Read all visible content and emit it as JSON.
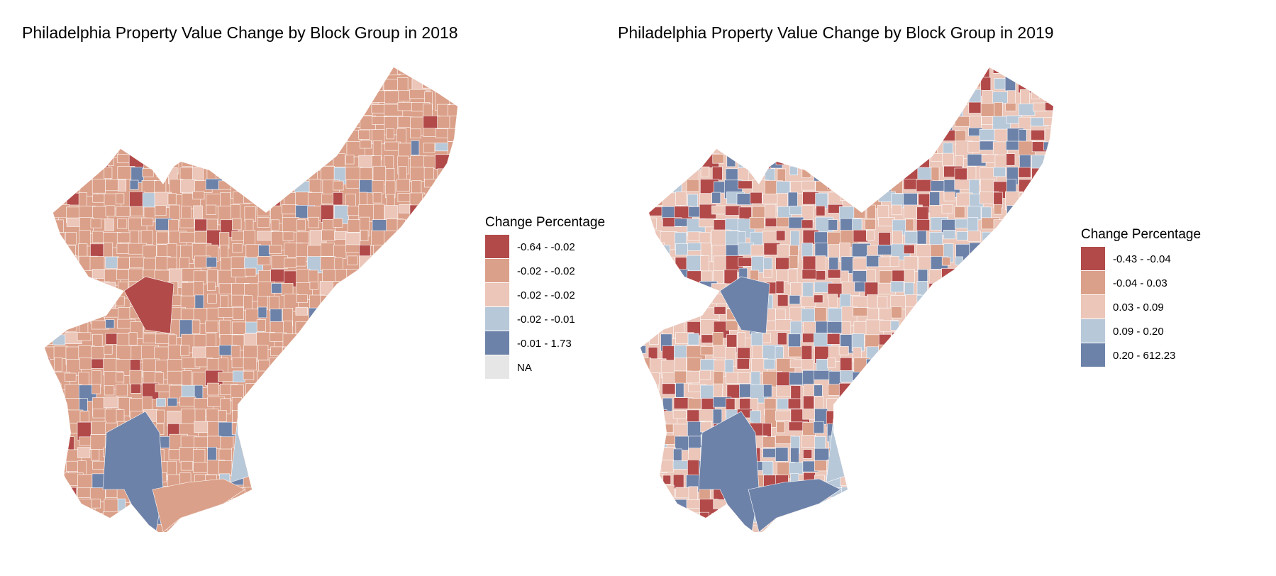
{
  "panels": [
    {
      "title": "Philadelphia Property Value Change by Block Group in 2018",
      "legend_title": "Change Percentage",
      "legend": [
        {
          "label": "-0.64 - -0.02",
          "color": "#B24A4A"
        },
        {
          "label": "-0.02 - -0.02",
          "color": "#DBA089"
        },
        {
          "label": "-0.02 - -0.02",
          "color": "#EBC6B9"
        },
        {
          "label": "-0.02 - -0.01",
          "color": "#B7C8D9"
        },
        {
          "label": "-0.01 - 1.73",
          "color": "#6D82A9"
        },
        {
          "label": "NA",
          "color": "#E6E6E6"
        }
      ],
      "dominant_color": "#DBA089"
    },
    {
      "title": "Philadelphia Property Value Change by Block Group in 2019",
      "legend_title": "Change Percentage",
      "legend": [
        {
          "label": "-0.43 - -0.04",
          "color": "#B24A4A"
        },
        {
          "label": "-0.04 - 0.03",
          "color": "#DBA089"
        },
        {
          "label": "0.03 - 0.09",
          "color": "#EBC6B9"
        },
        {
          "label": "0.09 - 0.20",
          "color": "#B7C8D9"
        },
        {
          "label": "0.20 - 612.23",
          "color": "#6D82A9"
        }
      ],
      "dominant_color": "#EBC6B9"
    }
  ]
}
